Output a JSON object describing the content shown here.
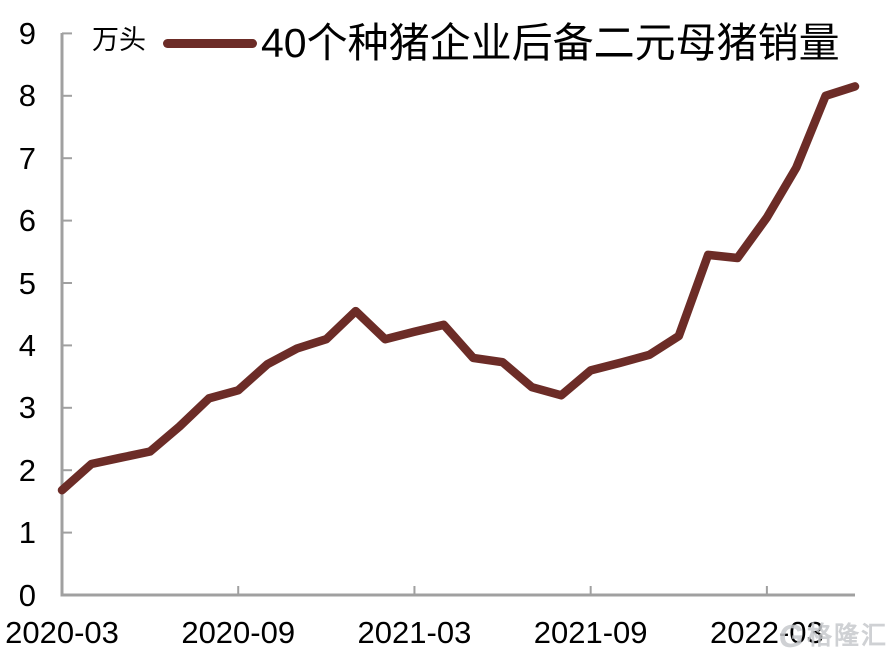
{
  "header": {
    "unit_label": "万头",
    "legend_label": "40个种猪企业后备二元母猪销量"
  },
  "watermark": {
    "logo": "G",
    "text": "格隆汇"
  },
  "colors": {
    "line": "#6c2c27",
    "axis": "#a0a0a0",
    "text": "#000000",
    "watermark": "#c7c9cd"
  },
  "chart_data": {
    "type": "line",
    "title": "",
    "legend": [
      "40个种猪企业后备二元母猪销量"
    ],
    "legend_position": "top",
    "ylabel": "万头",
    "xlabel": "",
    "ylim": [
      0,
      9
    ],
    "yticks": [
      0,
      1,
      2,
      3,
      4,
      5,
      6,
      7,
      8,
      9
    ],
    "grid": false,
    "xtick_labels": [
      "2020-03",
      "2020-09",
      "2021-03",
      "2021-09",
      "2022-03"
    ],
    "x": [
      "2020-03",
      "2020-04",
      "2020-05",
      "2020-06",
      "2020-07",
      "2020-08",
      "2020-09",
      "2020-10",
      "2020-11",
      "2020-12",
      "2021-01",
      "2021-02",
      "2021-03",
      "2021-04",
      "2021-05",
      "2021-06",
      "2021-07",
      "2021-08",
      "2021-09",
      "2021-10",
      "2021-11",
      "2021-12",
      "2022-01",
      "2022-02",
      "2022-03",
      "2022-04",
      "2022-05",
      "2022-06"
    ],
    "series": [
      {
        "name": "40个种猪企业后备二元母猪销量",
        "values": [
          1.68,
          2.1,
          2.2,
          2.3,
          2.7,
          3.15,
          3.28,
          3.7,
          3.95,
          4.1,
          4.55,
          4.1,
          4.22,
          4.33,
          3.8,
          3.73,
          3.33,
          3.2,
          3.6,
          3.72,
          3.85,
          4.15,
          5.45,
          5.4,
          6.05,
          6.85,
          8.0,
          8.15
        ]
      }
    ]
  }
}
